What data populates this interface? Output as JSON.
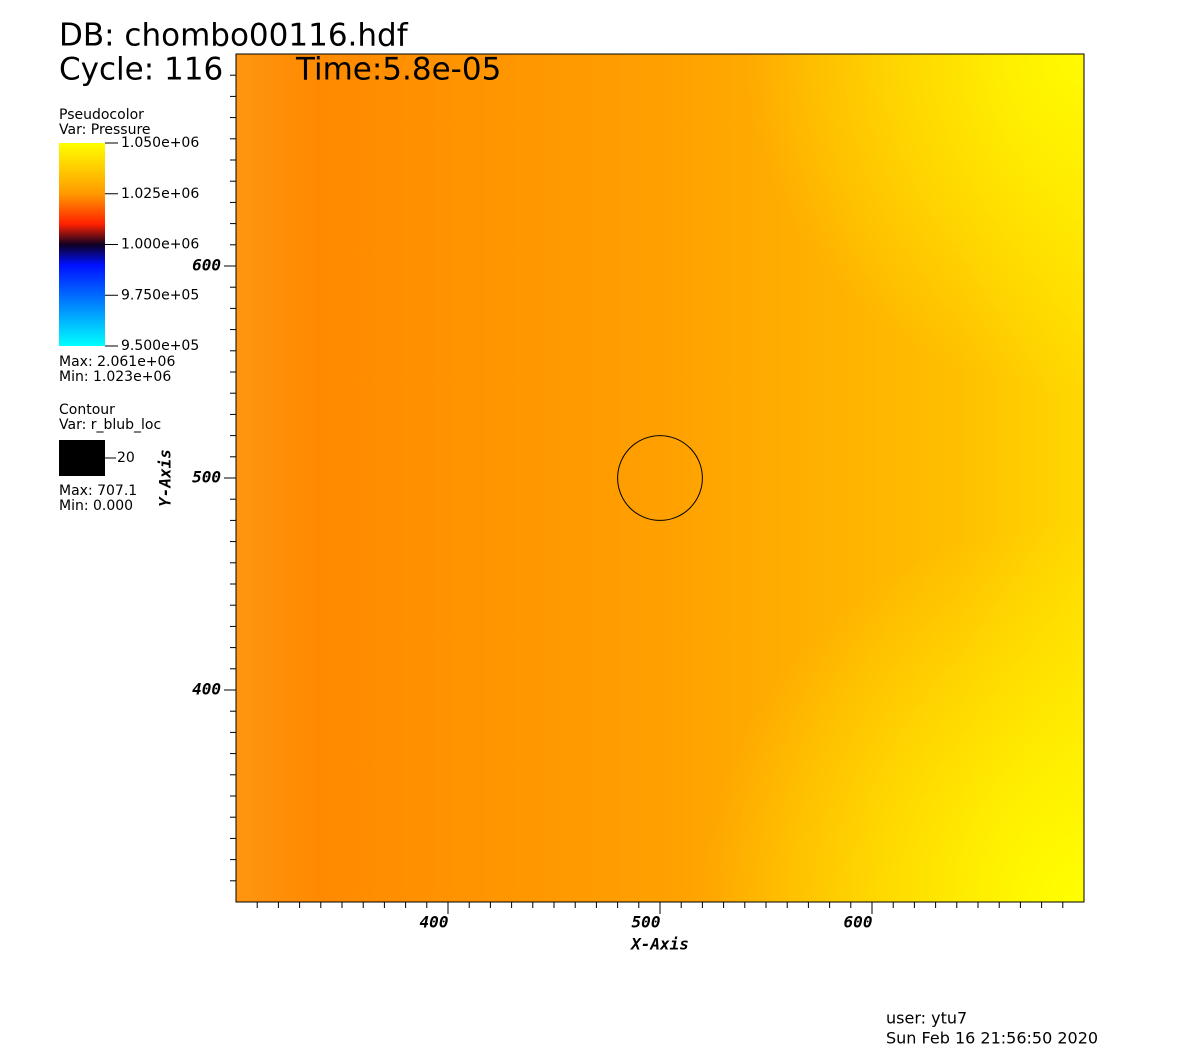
{
  "chart_data": {
    "type": "pseudocolor",
    "title": "DB: chombo00116.hdf",
    "cycle": "Cycle: 116",
    "time": "Time:5.8e-05",
    "xlabel": "X-Axis",
    "ylabel": "Y-Axis",
    "xlim": [
      300,
      700
    ],
    "ylim": [
      300,
      700
    ],
    "xticks": [
      400,
      500,
      600
    ],
    "yticks": [
      400,
      500,
      600
    ],
    "xminorticks": [
      310,
      320,
      330,
      340,
      350,
      360,
      370,
      380,
      390,
      410,
      420,
      430,
      440,
      450,
      460,
      470,
      480,
      490,
      510,
      520,
      530,
      540,
      550,
      560,
      570,
      580,
      590,
      610,
      620,
      630,
      640,
      650,
      660,
      670,
      680,
      690
    ],
    "yminorticks": [
      310,
      320,
      330,
      340,
      350,
      360,
      370,
      380,
      390,
      410,
      420,
      430,
      440,
      450,
      460,
      470,
      480,
      490,
      510,
      520,
      530,
      540,
      550,
      560,
      570,
      580,
      590,
      610,
      620,
      630,
      640,
      650,
      660,
      670,
      680,
      690
    ],
    "pseudocolor": {
      "plot": "Pseudocolor",
      "var": "Var: Pressure",
      "range": [
        950000,
        1050000
      ],
      "ticks": [
        {
          "value": 1050000,
          "label": "1.050e+06"
        },
        {
          "value": 1025000,
          "label": "1.025e+06"
        },
        {
          "value": 1000000,
          "label": "1.000e+06"
        },
        {
          "value": 975000,
          "label": "9.750e+05"
        },
        {
          "value": 950000,
          "label": "9.500e+05"
        }
      ],
      "max": "Max: 2.061e+06",
      "min": "Min: 1.023e+06"
    },
    "contour": {
      "plot": "Contour",
      "var": "Var: r_blub_loc",
      "levels": [
        20
      ],
      "color": "#000000",
      "max": "Max: 707.1",
      "min": "Min: 0.000"
    },
    "user": "user: ytu7",
    "date": "Sun Feb 16 21:56:50 2020"
  }
}
